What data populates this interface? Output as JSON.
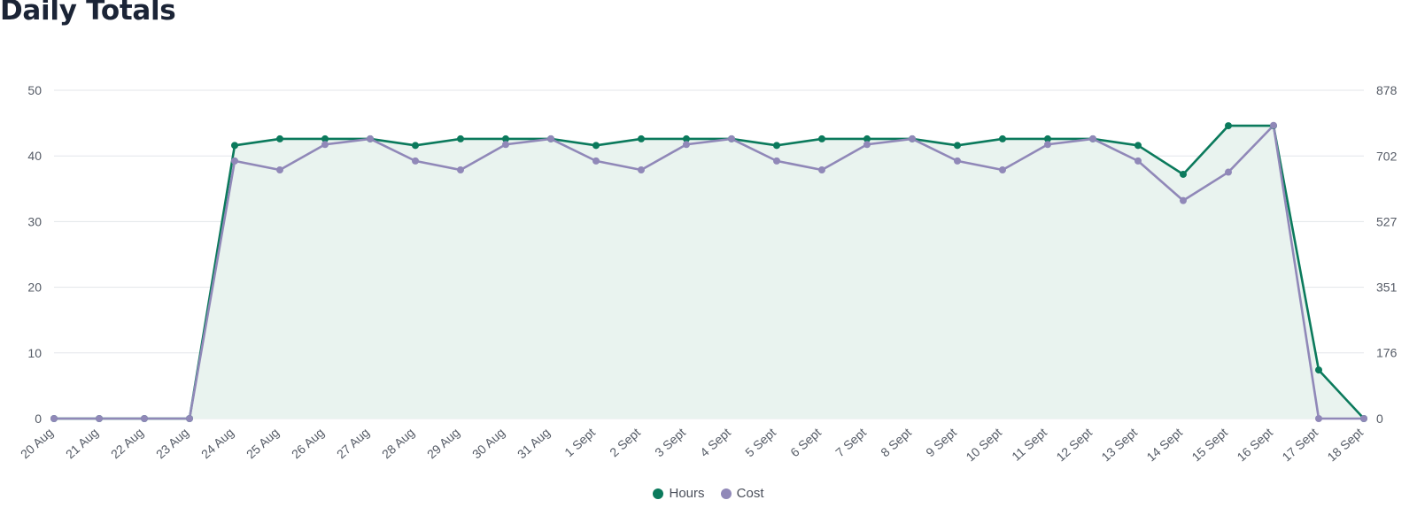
{
  "page": {
    "title": "Daily Totals"
  },
  "colors": {
    "hours": "#0b7a5c",
    "cost": "#9088b8",
    "area": "#e9f3ef",
    "grid": "#e3e6ea",
    "title": "#1b2436"
  },
  "legend": [
    {
      "label": "Hours",
      "color": "#0b7a5c"
    },
    {
      "label": "Cost",
      "color": "#9088b8"
    }
  ],
  "chart_data": {
    "type": "line",
    "title": "Daily Totals",
    "categories": [
      "20 Aug",
      "21 Aug",
      "22 Aug",
      "23 Aug",
      "24 Aug",
      "25 Aug",
      "26 Aug",
      "27 Aug",
      "28 Aug",
      "29 Aug",
      "30 Aug",
      "31 Aug",
      "1 Sept",
      "2 Sept",
      "3 Sept",
      "4 Sept",
      "5 Sept",
      "6 Sept",
      "7 Sept",
      "8 Sept",
      "9 Sept",
      "10 Sept",
      "11 Sept",
      "12 Sept",
      "13 Sept",
      "14 Sept",
      "15 Sept",
      "16 Sept",
      "17 Sept",
      "18 Sept"
    ],
    "y_left": {
      "ticks": [
        0,
        10,
        20,
        30,
        40,
        50
      ],
      "ylim": [
        0,
        50
      ]
    },
    "y_right": {
      "ticks": [
        0,
        176,
        351,
        527,
        702,
        878
      ],
      "ylim": [
        0,
        878
      ]
    },
    "grid": true,
    "legend_position": "bottom-center",
    "series": [
      {
        "name": "Hours",
        "axis": "left",
        "fill": true,
        "values": [
          0,
          0,
          0,
          0,
          41.6,
          42.6,
          42.6,
          42.6,
          41.6,
          42.6,
          42.6,
          42.6,
          41.6,
          42.6,
          42.6,
          42.6,
          41.6,
          42.6,
          42.6,
          42.6,
          41.6,
          42.6,
          42.6,
          42.6,
          41.6,
          37.2,
          44.6,
          44.6,
          7.4,
          0
        ]
      },
      {
        "name": "Cost",
        "axis": "right",
        "values": [
          0,
          0,
          0,
          0,
          689,
          665,
          733,
          748,
          689,
          665,
          733,
          748,
          689,
          665,
          733,
          748,
          689,
          665,
          733,
          748,
          689,
          665,
          733,
          748,
          689,
          583,
          659,
          784,
          0,
          0
        ]
      }
    ]
  }
}
